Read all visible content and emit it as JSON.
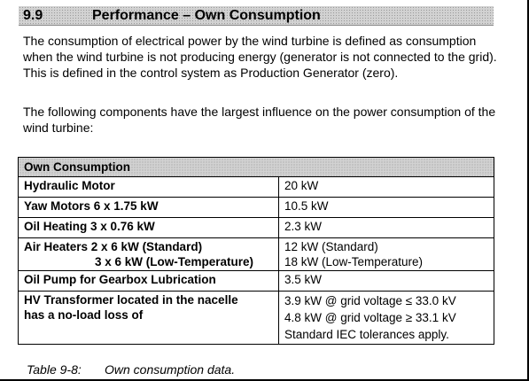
{
  "section": {
    "number": "9.9",
    "title": "Performance – Own Consumption"
  },
  "paragraphs": [
    "The consumption of electrical power by the wind turbine is defined as consumption when the wind turbine is not producing energy (generator is not connected to the grid). This is defined in the control system as Production Generator (zero).",
    "The following components have the largest influence on the power consumption of the wind turbine:"
  ],
  "table": {
    "title": "Own Consumption",
    "rows": [
      {
        "component": [
          "Hydraulic Motor"
        ],
        "value": [
          "20 kW"
        ]
      },
      {
        "component": [
          "Yaw Motors 6 x 1.75 kW"
        ],
        "value": [
          "10.5 kW"
        ]
      },
      {
        "component": [
          "Oil Heating 3 x 0.76 kW"
        ],
        "value": [
          "2.3 kW"
        ]
      },
      {
        "component": [
          "Air Heaters 2 x 6 kW (Standard)",
          "3 x 6 kW (Low-Temperature)"
        ],
        "value": [
          "12 kW (Standard)",
          "18 kW (Low-Temperature)"
        ]
      },
      {
        "component": [
          "Oil Pump for Gearbox Lubrication"
        ],
        "value": [
          "3.5 kW"
        ]
      },
      {
        "component": [
          "HV Transformer located in the nacelle",
          "has a no-load loss of"
        ],
        "value": [
          "3.9 kW @ grid voltage ≤ 33.0 kV",
          "4.8 kW @ grid voltage ≥ 33.1 kV",
          "Standard IEC tolerances apply."
        ]
      }
    ]
  },
  "caption": {
    "label": "Table 9-8:",
    "text": "Own consumption data."
  }
}
